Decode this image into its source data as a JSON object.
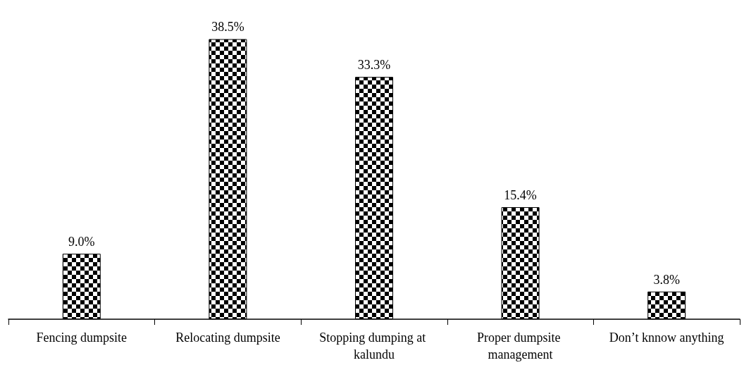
{
  "chart_data": {
    "type": "bar",
    "categories": [
      "Fencing dumpsite",
      "Relocating dumpsite",
      "Stopping dumping at kalundu",
      "Proper dumpsite management",
      "Don’t knnow anything"
    ],
    "values": [
      9.0,
      38.5,
      33.3,
      15.4,
      3.8
    ],
    "value_labels": [
      "9.0%",
      "38.5%",
      "33.3%",
      "15.4%",
      "3.8%"
    ],
    "color": "#000000"
  }
}
